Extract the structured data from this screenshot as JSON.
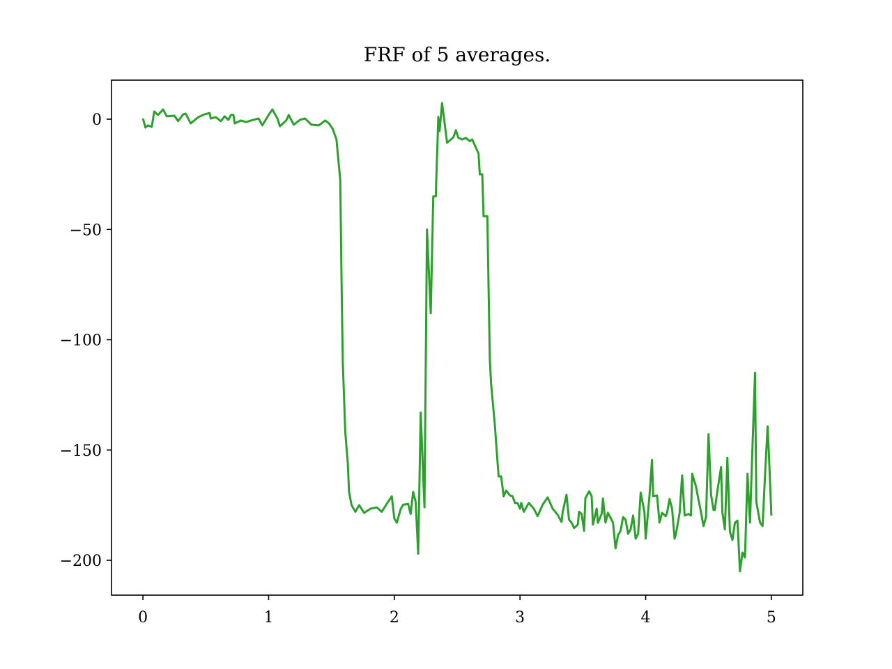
{
  "chart_data": {
    "type": "line",
    "title": "FRF of 5 averages.",
    "xlim": [
      -0.25,
      5.25
    ],
    "ylim": [
      -215.8,
      17.7
    ],
    "xticks": [
      0,
      1,
      2,
      3,
      4,
      5
    ],
    "yticks": [
      0,
      {
        "value": -50,
        "label": "−50"
      },
      {
        "value": -100,
        "label": "−100"
      },
      {
        "value": -150,
        "label": "−150"
      },
      {
        "value": -200,
        "label": "−200"
      }
    ],
    "grid": false,
    "x": [
      0,
      0.02,
      0.04,
      0.07,
      0.09,
      0.12,
      0.16,
      0.19,
      0.25,
      0.28,
      0.32,
      0.34,
      0.36,
      0.38,
      0.44,
      0.49,
      0.53,
      0.54,
      0.58,
      0.62,
      0.65,
      0.68,
      0.7,
      0.72,
      0.73,
      0.78,
      0.82,
      0.86,
      0.92,
      0.95,
      1.0,
      1.03,
      1.07,
      1.09,
      1.14,
      1.16,
      1.2,
      1.25,
      1.29,
      1.34,
      1.4,
      1.45,
      1.48,
      1.51,
      1.54,
      1.55,
      1.57,
      1.58,
      1.59,
      1.61,
      1.63,
      1.64,
      1.66,
      1.69,
      1.72,
      1.76,
      1.81,
      1.86,
      1.9,
      1.95,
      1.98,
      2.0,
      2.02,
      2.05,
      2.07,
      2.11,
      2.13,
      2.15,
      2.17,
      2.19,
      2.21,
      2.24,
      2.26,
      2.29,
      2.31,
      2.33,
      2.35,
      2.36,
      2.38,
      2.42,
      2.47,
      2.49,
      2.51,
      2.54,
      2.57,
      2.6,
      2.62,
      2.65,
      2.67,
      2.68,
      2.7,
      2.71,
      2.74,
      2.76,
      2.77,
      2.8,
      2.82,
      2.83,
      2.85,
      2.87,
      2.89,
      2.92,
      2.94,
      2.96,
      2.98,
      3.0,
      3.01,
      3.03,
      3.07,
      3.11,
      3.14,
      3.18,
      3.22,
      3.26,
      3.3,
      3.33,
      3.34,
      3.37,
      3.39,
      3.41,
      3.43,
      3.46,
      3.47,
      3.49,
      3.51,
      3.52,
      3.55,
      3.57,
      3.58,
      3.61,
      3.62,
      3.65,
      3.66,
      3.68,
      3.7,
      3.74,
      3.76,
      3.78,
      3.8,
      3.82,
      3.84,
      3.86,
      3.88,
      3.9,
      3.92,
      3.94,
      3.96,
      3.99,
      4.0,
      4.03,
      4.05,
      4.06,
      4.09,
      4.11,
      4.13,
      4.16,
      4.17,
      4.19,
      4.21,
      4.23,
      4.24,
      4.27,
      4.29,
      4.31,
      4.34,
      4.36,
      4.37,
      4.4,
      4.42,
      4.44,
      4.46,
      4.48,
      4.5,
      4.52,
      4.54,
      4.55,
      4.57,
      4.6,
      4.61,
      4.63,
      4.65,
      4.67,
      4.69,
      4.71,
      4.73,
      4.75,
      4.77,
      4.79,
      4.81,
      4.83,
      4.85,
      4.87,
      4.88,
      4.91,
      4.93,
      4.95,
      4.97,
      4.98,
      5.0
    ],
    "series": [
      {
        "color": "#2ca02c",
        "values": [
          0.3,
          -3.8,
          -2.8,
          -3.5,
          3.5,
          1.9,
          4.4,
          1.3,
          1.6,
          -0.9,
          2.2,
          2.5,
          0.3,
          -1.9,
          0.9,
          2.2,
          2.8,
          0.3,
          0.9,
          -0.9,
          1.3,
          -0.3,
          1.9,
          1.9,
          -1.9,
          -0.6,
          -1.3,
          -0.6,
          0.3,
          -2.8,
          1.9,
          4.4,
          0.3,
          -3.2,
          -0.6,
          1.9,
          -2.5,
          -0.3,
          0.3,
          -2.5,
          -2.8,
          -0.6,
          -1.9,
          -4.4,
          -9.2,
          -15.5,
          -27.5,
          -72.4,
          -110,
          -142,
          -156,
          -169,
          -175,
          -178,
          -175,
          -178.5,
          -176.6,
          -176,
          -178,
          -173.5,
          -171,
          -181,
          -183,
          -176.9,
          -174.8,
          -174.5,
          -179,
          -169,
          -173.5,
          -197,
          -133,
          -176,
          -50,
          -88,
          -35,
          -35,
          1,
          -5.4,
          7.3,
          -10.7,
          -8.2,
          -5,
          -8.5,
          -9.2,
          -8.5,
          -10,
          -9.2,
          -13,
          -15.5,
          -25,
          -25,
          -44,
          -44,
          -108.7,
          -120,
          -138.7,
          -154.5,
          -162,
          -162,
          -171,
          -168.4,
          -170.6,
          -170.9,
          -174,
          -174,
          -176.6,
          -174,
          -178,
          -174,
          -176.6,
          -180,
          -174.8,
          -171.5,
          -176.6,
          -179.4,
          -182.6,
          -178,
          -170.3,
          -181.6,
          -182.9,
          -185.4,
          -183.8,
          -178,
          -179,
          -186.6,
          -171.9,
          -168.7,
          -170.9,
          -183.8,
          -176.6,
          -183,
          -178.9,
          -172,
          -182.9,
          -178.5,
          -182.9,
          -194.6,
          -188.6,
          -186.7,
          -180.4,
          -181.6,
          -188,
          -186,
          -179.7,
          -190.2,
          -188,
          -169.3,
          -178,
          -190.2,
          -170.9,
          -154.5,
          -170.9,
          -170.6,
          -182.9,
          -178.5,
          -180,
          -178.5,
          -172.2,
          -176.6,
          -190.2,
          -188.3,
          -178.5,
          -161.5,
          -179.7,
          -179,
          -179.7,
          -160.8,
          -166.5,
          -172.5,
          -178.2,
          -184.5,
          -180.4,
          -142.8,
          -170.3,
          -177.2,
          -177.2,
          -168.7,
          -157.7,
          -178.2,
          -186,
          -153.6,
          -187,
          -190.8,
          -183,
          -182,
          -205,
          -196.5,
          -198.7,
          -160.8,
          -182.9,
          -148,
          -115,
          -173.5,
          -182.9,
          -184.5,
          -160.8,
          -139.3,
          -151.3,
          -179.7
        ]
      }
    ]
  }
}
